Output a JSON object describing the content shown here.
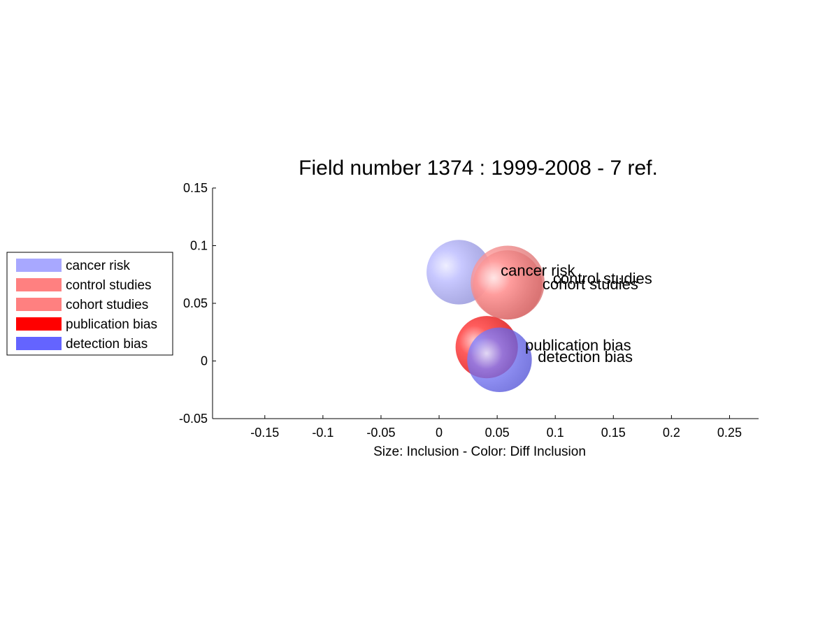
{
  "chart_data": {
    "type": "scatter",
    "title": "Field number 1374 : 1999-2008  - 7 ref.",
    "xlabel": "Size: Inclusion - Color: Diff Inclusion",
    "ylabel": "",
    "xlim": [
      -0.195,
      0.275
    ],
    "ylim": [
      -0.05,
      0.15
    ],
    "xticks": [
      "-0.15",
      "-0.1",
      "-0.05",
      "0",
      "0.05",
      "0.1",
      "0.15",
      "0.2",
      "0.25"
    ],
    "xtick_values": [
      -0.15,
      -0.1,
      -0.05,
      0,
      0.05,
      0.1,
      0.15,
      0.2,
      0.25
    ],
    "yticks": [
      "-0.05",
      "0",
      "0.05",
      "0.1",
      "0.15"
    ],
    "ytick_values": [
      -0.05,
      0,
      0.05,
      0.1,
      0.15
    ],
    "grid": false,
    "legend_position": "left",
    "series": [
      {
        "name": "cancer risk",
        "x": 0.017,
        "y": 0.077,
        "radius": 0.028,
        "color": "#a8a8ff",
        "label_x": 0.053,
        "label_y": 0.074
      },
      {
        "name": "control studies",
        "x": 0.059,
        "y": 0.068,
        "radius": 0.032,
        "color": "#ff8080",
        "label_x": 0.098,
        "label_y": 0.067
      },
      {
        "name": "cohort studies",
        "x": 0.059,
        "y": 0.066,
        "radius": 0.03,
        "color": "#ff8080",
        "label_x": 0.089,
        "label_y": 0.062
      },
      {
        "name": "publication bias",
        "x": 0.041,
        "y": 0.012,
        "radius": 0.027,
        "color": "#ff0000",
        "label_x": 0.074,
        "label_y": 0.009
      },
      {
        "name": "detection bias",
        "x": 0.052,
        "y": 0.001,
        "radius": 0.028,
        "color": "#6464ff",
        "label_x": 0.085,
        "label_y": -0.001
      }
    ]
  }
}
